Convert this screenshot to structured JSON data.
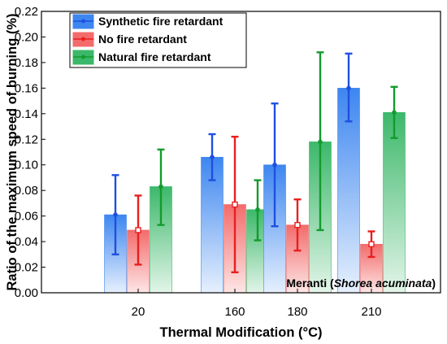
{
  "chart_data": {
    "type": "bar",
    "xlabel": "Thermal Modification (°C)",
    "ylabel": "Ratio of the maximum speed of burning (%)",
    "categories": [
      "20",
      "160",
      "180",
      "210"
    ],
    "ylim": [
      0,
      0.22
    ],
    "yticks": [
      "0.00",
      "0.02",
      "0.04",
      "0.06",
      "0.08",
      "0.10",
      "0.12",
      "0.14",
      "0.16",
      "0.18",
      "0.20",
      "0.22"
    ],
    "grid": false,
    "legend_position": "top-left",
    "series": [
      {
        "name": "Synthetic fire retardant",
        "color": "#1f4fe0",
        "fill_top": "#3d86f0",
        "fill_bottom": "#e6f0fd",
        "values": [
          0.061,
          0.106,
          0.1,
          0.16
        ],
        "err_low": [
          0.03,
          0.088,
          0.052,
          0.134
        ],
        "err_high": [
          0.092,
          0.124,
          0.148,
          0.187
        ]
      },
      {
        "name": "No fire retardant",
        "color": "#e81f1f",
        "fill_top": "#f36b6b",
        "fill_bottom": "#fde6e6",
        "values": [
          0.049,
          0.069,
          0.053,
          0.038
        ],
        "err_low": [
          0.022,
          0.016,
          0.033,
          0.028
        ],
        "err_high": [
          0.076,
          0.122,
          0.073,
          0.048
        ]
      },
      {
        "name": "Natural fire retardant",
        "color": "#139b2c",
        "fill_top": "#3cb86a",
        "fill_bottom": "#e3f5e9",
        "values": [
          0.083,
          0.065,
          0.118,
          0.141
        ],
        "err_low": [
          0.053,
          0.041,
          0.049,
          0.121
        ],
        "err_high": [
          0.112,
          0.088,
          0.188,
          0.161
        ]
      }
    ],
    "annotation": {
      "prefix": "Meranti (",
      "species": "Shorea acuminata",
      "suffix": ")"
    }
  }
}
